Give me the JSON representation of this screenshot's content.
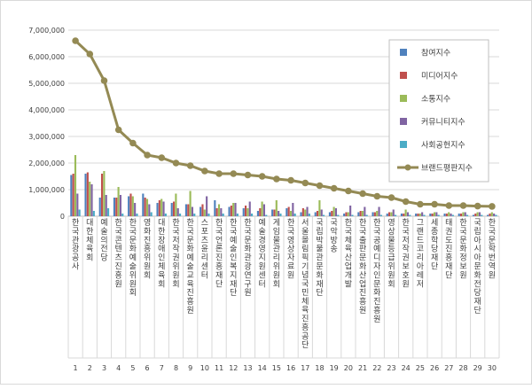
{
  "chart_data": {
    "type": "bar",
    "ylim": [
      0,
      7000000
    ],
    "y_ticks": [
      "0",
      "1,000,000",
      "2,000,000",
      "3,000,000",
      "4,000,000",
      "5,000,000",
      "6,000,000",
      "7,000,000"
    ],
    "grid": true,
    "legend_position": "top-right",
    "categories": [
      "한국관광공사",
      "대한체육회",
      "예술의전당",
      "한국콘텐츠진흥원",
      "한국문화예술위원회",
      "영화진흥위원회",
      "대한장애인체육회",
      "한국저작권위원회",
      "한국문화예술교육진흥원",
      "스포츠윤리센터",
      "한국언론진흥재단",
      "한국예술인복지재단",
      "한국문화관광연구원",
      "예술경영지원센터",
      "게임물관리위원회",
      "한국영상자료원",
      "서울올림픽기념국민체육진흥공단",
      "국립박물관문화재단",
      "국악방송",
      "한국체육산업개발",
      "한국출판문화산업진흥원",
      "한국공예디자인문화진흥원",
      "영상물등급위원회",
      "한국저작권보호원",
      "그랜드코리아레저",
      "세종학당재단",
      "태권도진흥재단",
      "한국문화정보원",
      "국립아시아문화전당재단",
      "한국문학번역원"
    ],
    "numbers": [
      "1",
      "2",
      "3",
      "4",
      "5",
      "6",
      "7",
      "8",
      "9",
      "10",
      "11",
      "12",
      "13",
      "14",
      "15",
      "16",
      "17",
      "18",
      "19",
      "20",
      "21",
      "22",
      "23",
      "24",
      "25",
      "26",
      "27",
      "28",
      "29",
      "30"
    ],
    "series": [
      {
        "name": "참여지수",
        "color": "#4f81bd",
        "values": [
          1550000,
          1600000,
          700000,
          700000,
          750000,
          850000,
          500000,
          500000,
          450000,
          350000,
          600000,
          350000,
          300000,
          200000,
          250000,
          300000,
          150000,
          150000,
          150000,
          100000,
          150000,
          150000,
          100000,
          100000,
          100000,
          100000,
          100000,
          100000,
          50000,
          50000
        ]
      },
      {
        "name": "미디어지수",
        "color": "#c0504d",
        "values": [
          1600000,
          1650000,
          1600000,
          700000,
          850000,
          700000,
          600000,
          550000,
          450000,
          450000,
          300000,
          400000,
          400000,
          300000,
          250000,
          350000,
          300000,
          200000,
          200000,
          150000,
          200000,
          150000,
          150000,
          100000,
          100000,
          100000,
          100000,
          100000,
          100000,
          100000
        ]
      },
      {
        "name": "소통지수",
        "color": "#9bbb59",
        "values": [
          2300000,
          1300000,
          1700000,
          1100000,
          750000,
          650000,
          650000,
          850000,
          950000,
          250000,
          450000,
          500000,
          300000,
          550000,
          600000,
          200000,
          250000,
          600000,
          350000,
          150000,
          200000,
          200000,
          150000,
          250000,
          100000,
          150000,
          150000,
          150000,
          150000,
          150000
        ]
      },
      {
        "name": "커뮤니티지수",
        "color": "#8064a2",
        "values": [
          850000,
          1200000,
          800000,
          800000,
          500000,
          450000,
          550000,
          300000,
          350000,
          750000,
          300000,
          500000,
          550000,
          450000,
          200000,
          500000,
          350000,
          250000,
          300000,
          400000,
          350000,
          350000,
          250000,
          150000,
          150000,
          150000,
          100000,
          150000,
          150000,
          100000
        ]
      },
      {
        "name": "사회공헌지수",
        "color": "#4bacc6",
        "values": [
          250000,
          200000,
          300000,
          100000,
          100000,
          150000,
          100000,
          100000,
          100000,
          100000,
          100000,
          100000,
          100000,
          50000,
          100000,
          100000,
          100000,
          50000,
          50000,
          50000,
          50000,
          50000,
          50000,
          50000,
          50000,
          50000,
          50000,
          50000,
          50000,
          50000
        ]
      },
      {
        "name": "브랜드평판지수",
        "color": "#948a54",
        "type": "line",
        "values": [
          6600000,
          6100000,
          5100000,
          3250000,
          2750000,
          2300000,
          2200000,
          2000000,
          1900000,
          1700000,
          1600000,
          1600000,
          1550000,
          1500000,
          1400000,
          1350000,
          1250000,
          1150000,
          1050000,
          950000,
          850000,
          750000,
          700000,
          550000,
          450000,
          450000,
          400000,
          400000,
          380000,
          370000
        ]
      }
    ]
  }
}
